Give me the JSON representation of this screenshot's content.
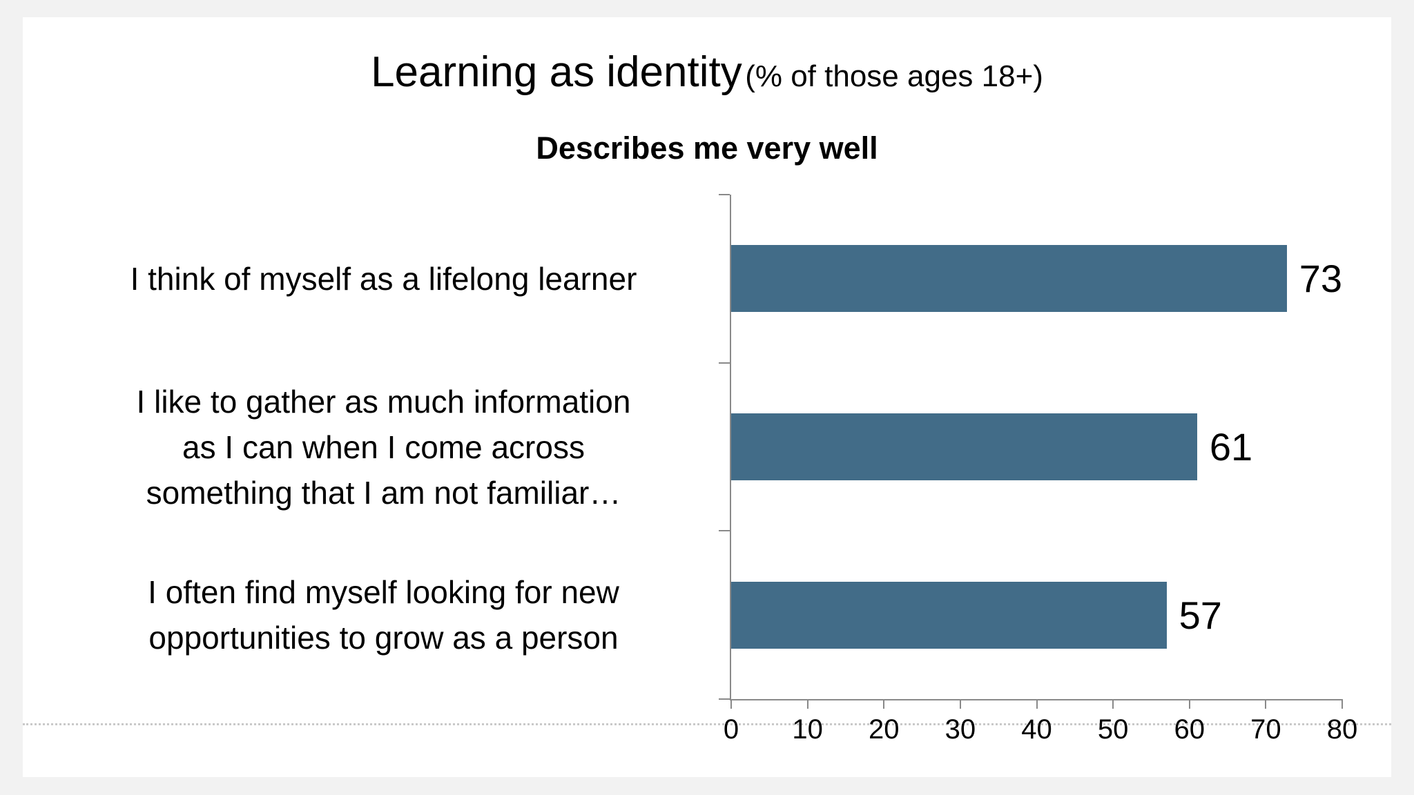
{
  "page": {
    "background_color": "#f2f2f2",
    "card_color": "#ffffff"
  },
  "header": {
    "title": "Learning as identity",
    "title_note": "(% of those ages 18+)",
    "subtitle": "Describes me very well"
  },
  "chart_data": {
    "type": "bar",
    "orientation": "horizontal",
    "title": "Learning as identity (% of those ages 18+)",
    "subtitle": "Describes me very well",
    "categories": [
      "I think of myself as a lifelong learner",
      "I like to gather as much information as I can when I come across something that I am not familiar…",
      "I often find myself looking for new opportunities to grow as a person"
    ],
    "categories_lines": [
      [
        "I think of myself as a lifelong learner"
      ],
      [
        "I like to gather as much information",
        "as I can when I come across",
        "something that I am not familiar…"
      ],
      [
        "I often find myself looking for new",
        "opportunities to grow as a person"
      ]
    ],
    "values": [
      73,
      61,
      57
    ],
    "value_labels": [
      "73",
      "61",
      "57"
    ],
    "xlim": [
      0,
      80
    ],
    "xticks": [
      0,
      10,
      20,
      30,
      40,
      50,
      60,
      70,
      80
    ],
    "bar_color": "#426c88",
    "axis_color": "#898989",
    "grid": false,
    "legend_position": "none"
  }
}
